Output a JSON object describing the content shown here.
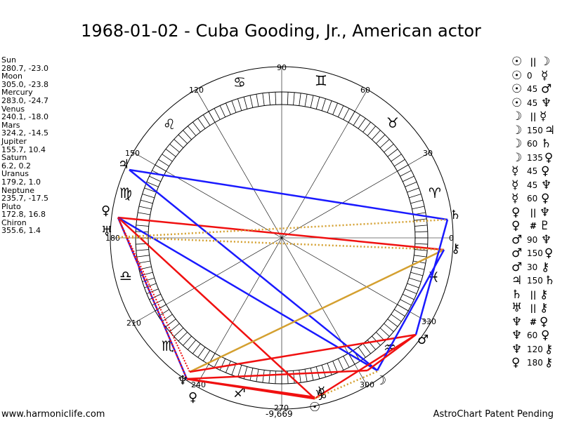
{
  "title": "1968-01-02 - Cuba Gooding, Jr., American actor",
  "planets": [
    {
      "name": "Sun",
      "values": "280.7, -23.0"
    },
    {
      "name": "Moon",
      "values": "305.0, -23.8"
    },
    {
      "name": "Mercury",
      "values": "283.0, -24.7"
    },
    {
      "name": "Venus",
      "values": "240.1, -18.0"
    },
    {
      "name": "Mars",
      "values": "324.2, -14.5"
    },
    {
      "name": "Jupiter",
      "values": "155.7, 10.4"
    },
    {
      "name": "Saturn",
      "values": "6.2, 0.2"
    },
    {
      "name": "Uranus",
      "values": "179.2, 1.0"
    },
    {
      "name": "Neptune",
      "values": "235.7, -17.5"
    },
    {
      "name": "Pluto",
      "values": "172.8, 16.8"
    },
    {
      "name": "Chiron",
      "values": "355.6, 1.4"
    }
  ],
  "aspects": [
    {
      "p1": "☉",
      "aspect": "||",
      "p2": "☽"
    },
    {
      "p1": "☉",
      "aspect": "0",
      "p2": "☿"
    },
    {
      "p1": "☉",
      "aspect": "45",
      "p2": "♂"
    },
    {
      "p1": "☉",
      "aspect": "45",
      "p2": "♆"
    },
    {
      "p1": "☽",
      "aspect": "||",
      "p2": "☿"
    },
    {
      "p1": "☽",
      "aspect": "150",
      "p2": "♃"
    },
    {
      "p1": "☽",
      "aspect": "60",
      "p2": "♄"
    },
    {
      "p1": "☽",
      "aspect": "135",
      "p2": "♀"
    },
    {
      "p1": "☿",
      "aspect": "45",
      "p2": "♀"
    },
    {
      "p1": "☿",
      "aspect": "45",
      "p2": "♆"
    },
    {
      "p1": "☿",
      "aspect": "60",
      "p2": "♀"
    },
    {
      "p1": "♀",
      "aspect": "||",
      "p2": "♆"
    },
    {
      "p1": "♀",
      "aspect": "#",
      "p2": "♇"
    },
    {
      "p1": "♂",
      "aspect": "90",
      "p2": "♆"
    },
    {
      "p1": "♂",
      "aspect": "150",
      "p2": "♀"
    },
    {
      "p1": "♂",
      "aspect": "30",
      "p2": "⚷"
    },
    {
      "p1": "♃",
      "aspect": "150",
      "p2": "♄"
    },
    {
      "p1": "♄",
      "aspect": "||",
      "p2": "⚷"
    },
    {
      "p1": "♅",
      "aspect": "||",
      "p2": "⚷"
    },
    {
      "p1": "♆",
      "aspect": "#",
      "p2": "♀"
    },
    {
      "p1": "♆",
      "aspect": "60",
      "p2": "♀"
    },
    {
      "p1": "♆",
      "aspect": "120",
      "p2": "⚷"
    },
    {
      "p1": "♀",
      "aspect": "180",
      "p2": "⚷"
    }
  ],
  "angle_labels": {
    "a0": "0",
    "a30": "30",
    "a60": "60",
    "a90": "90",
    "a120": "120",
    "a150": "150",
    "a180": "180",
    "a210": "210",
    "a240": "240",
    "a270": "270",
    "a300": "300",
    "a330": "330"
  },
  "bottom_value": "-9,669",
  "footer_left": "www.harmoniclife.com",
  "footer_right": "AstroChart Patent Pending",
  "colors": {
    "blue": "#1a1aff",
    "red": "#f01010",
    "gold": "#d4a030"
  }
}
